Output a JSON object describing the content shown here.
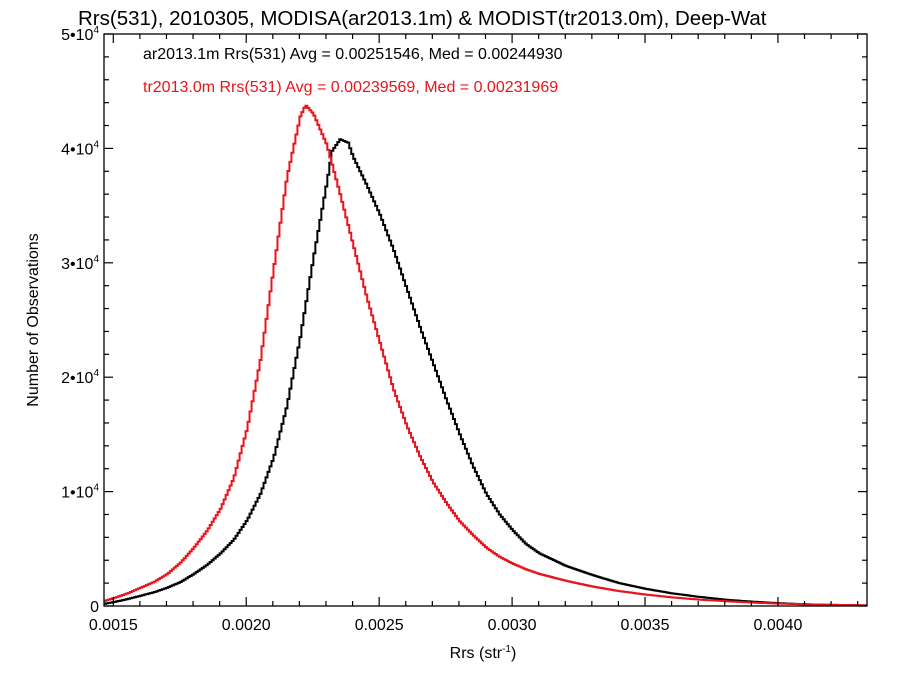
{
  "chart_data": {
    "type": "line",
    "title": "Rrs(531), 2010305, MODISA(ar2013.1m) & MODIST(tr2013.0m), Deep-Wat",
    "xlabel": "Rrs (str",
    "xlabel_sup": "-1",
    "xlabel_close": ")",
    "ylabel": "Number of Observations",
    "xlim": [
      0.001465,
      0.004335
    ],
    "ylim": [
      0,
      50000
    ],
    "x_ticks": [
      0.0015,
      0.002,
      0.0025,
      0.003,
      0.0035,
      0.004
    ],
    "x_tick_labels": [
      "0.0015",
      "0.0020",
      "0.0025",
      "0.0030",
      "0.0035",
      "0.0040"
    ],
    "y_ticks": [
      {
        "value": 0,
        "mantissa": "0",
        "sup": ""
      },
      {
        "value": 10000,
        "mantissa": "1•10",
        "sup": "4"
      },
      {
        "value": 20000,
        "mantissa": "2•10",
        "sup": "4"
      },
      {
        "value": 30000,
        "mantissa": "3•10",
        "sup": "4"
      },
      {
        "value": 40000,
        "mantissa": "4•10",
        "sup": "4"
      },
      {
        "value": 50000,
        "mantissa": "5•10",
        "sup": "4"
      }
    ],
    "grid": false,
    "annotations": [
      {
        "text": "ar2013.1m Rrs(531) Avg = 0.00251546, Med = 0.00244930",
        "color": "#000000"
      },
      {
        "text": "tr2013.0m Rrs(531) Avg = 0.00239569, Med = 0.00231969",
        "color": "#e8141c"
      }
    ],
    "series": [
      {
        "color": "#000000",
        "step": true,
        "x": [
          0.001465,
          0.0015,
          0.00155,
          0.0016,
          0.00165,
          0.0017,
          0.00175,
          0.0018,
          0.00185,
          0.0019,
          0.00195,
          0.002,
          0.00205,
          0.0021,
          0.00215,
          0.0022,
          0.00225,
          0.0023,
          0.00232,
          0.00235,
          0.00238,
          0.0024,
          0.00245,
          0.0025,
          0.00255,
          0.0026,
          0.00265,
          0.0027,
          0.00275,
          0.0028,
          0.00285,
          0.0029,
          0.00295,
          0.003,
          0.00305,
          0.0031,
          0.0032,
          0.0033,
          0.0034,
          0.0035,
          0.0036,
          0.0037,
          0.0038,
          0.0039,
          0.004,
          0.0041,
          0.0042,
          0.00433
        ],
        "y": [
          200,
          350,
          600,
          900,
          1200,
          1600,
          2100,
          2800,
          3600,
          4600,
          5800,
          7500,
          9800,
          13000,
          17500,
          23500,
          30500,
          37000,
          39800,
          40800,
          40500,
          39200,
          36800,
          34200,
          31200,
          27800,
          24400,
          21200,
          18000,
          15000,
          12200,
          9800,
          8000,
          6600,
          5400,
          4600,
          3500,
          2700,
          2000,
          1500,
          1100,
          800,
          550,
          380,
          250,
          150,
          100,
          50
        ]
      },
      {
        "color": "#e8141c",
        "step": true,
        "x": [
          0.001465,
          0.0015,
          0.00155,
          0.0016,
          0.00165,
          0.0017,
          0.00175,
          0.0018,
          0.00185,
          0.0019,
          0.00195,
          0.002,
          0.00205,
          0.0021,
          0.00215,
          0.0022,
          0.00222,
          0.00225,
          0.0023,
          0.00235,
          0.0024,
          0.00245,
          0.0025,
          0.00255,
          0.0026,
          0.00265,
          0.0027,
          0.00275,
          0.0028,
          0.00285,
          0.0029,
          0.00295,
          0.003,
          0.00305,
          0.0031,
          0.0032,
          0.0033,
          0.0034,
          0.0035,
          0.0036,
          0.0037,
          0.0038,
          0.0039,
          0.004,
          0.0041,
          0.0042,
          0.00433
        ],
        "y": [
          450,
          700,
          1100,
          1600,
          2100,
          2800,
          3800,
          5100,
          6600,
          8500,
          11200,
          15500,
          21500,
          29500,
          37500,
          42800,
          43800,
          43000,
          40300,
          36000,
          31500,
          27000,
          23000,
          19000,
          15800,
          13100,
          10800,
          9000,
          7400,
          6200,
          5100,
          4300,
          3700,
          3200,
          2800,
          2200,
          1700,
          1300,
          1000,
          750,
          560,
          420,
          300,
          210,
          150,
          100,
          60
        ]
      }
    ]
  }
}
